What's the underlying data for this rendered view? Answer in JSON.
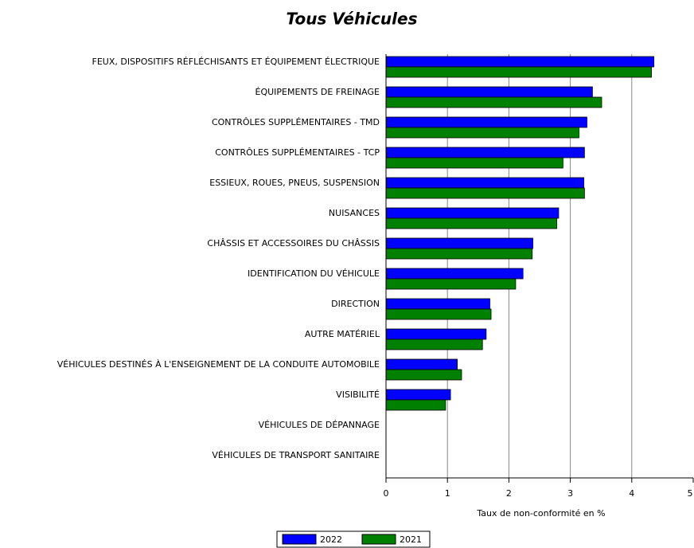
{
  "chart_data": {
    "type": "bar",
    "orientation": "horizontal",
    "title": "Tous Véhicules",
    "xlabel": "Taux de non-conformité en %",
    "categories": [
      "FEUX, DISPOSITIFS RÉFLÉCHISANTS ET ÉQUIPEMENT ÉLECTRIQUE",
      "ÉQUIPEMENTS DE FREINAGE",
      "CONTRÔLES SUPPLÉMENTAIRES - TMD",
      "CONTRÔLES SUPPLÉMENTAIRES - TCP",
      "ESSIEUX, ROUES, PNEUS, SUSPENSION",
      "NUISANCES",
      "CHÂSSIS ET ACCESSOIRES DU CHÂSSIS",
      "IDENTIFICATION DU VÉHICULE",
      "DIRECTION",
      "AUTRE MATÉRIEL",
      "VÉHICULES DESTINÉS À L'ENSEIGNEMENT DE LA CONDUITE AUTOMOBILE",
      "VISIBILITÉ",
      "VÉHICULES DE DÉPANNAGE",
      "VÉHICULES DE TRANSPORT SANITAIRE"
    ],
    "series": [
      {
        "name": "2022",
        "color": "#0000ff",
        "values": [
          4.36,
          3.36,
          3.27,
          3.23,
          3.22,
          2.81,
          2.39,
          2.23,
          1.69,
          1.63,
          1.16,
          1.05,
          0,
          0
        ]
      },
      {
        "name": "2021",
        "color": "#008000",
        "values": [
          4.32,
          3.51,
          3.14,
          2.88,
          3.23,
          2.78,
          2.38,
          2.11,
          1.71,
          1.57,
          1.23,
          0.97,
          0,
          0
        ]
      }
    ],
    "xlim": [
      0,
      5
    ],
    "xticks": [
      0,
      1,
      2,
      3,
      4,
      5
    ],
    "grid": true,
    "legend": "bottom"
  }
}
